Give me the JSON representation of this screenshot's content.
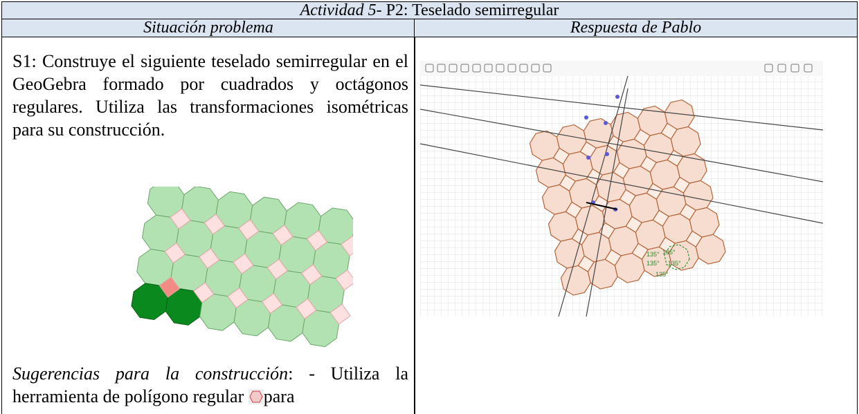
{
  "header": {
    "title_italic": "Actividad 5",
    "title_rest": "- P2: Teselado semirregular"
  },
  "columns": [
    "Situación problema",
    "Respuesta de Pablo"
  ],
  "problem": {
    "statement": "S1: Construye el siguiente teselado semirregular en el GeoGebra formado por cuadrados y octágonos regulares. Utiliza las transformaciones isométricas para su construcción.",
    "suggestion_label": "Sugerencias para la construcción",
    "suggestion_text": ": - Utiliza la herramienta de polígono regular",
    "suggestion_tail": "para"
  },
  "response": {
    "angle_labels": [
      "135°",
      "135°",
      "135°",
      "135°",
      "135°"
    ]
  }
}
